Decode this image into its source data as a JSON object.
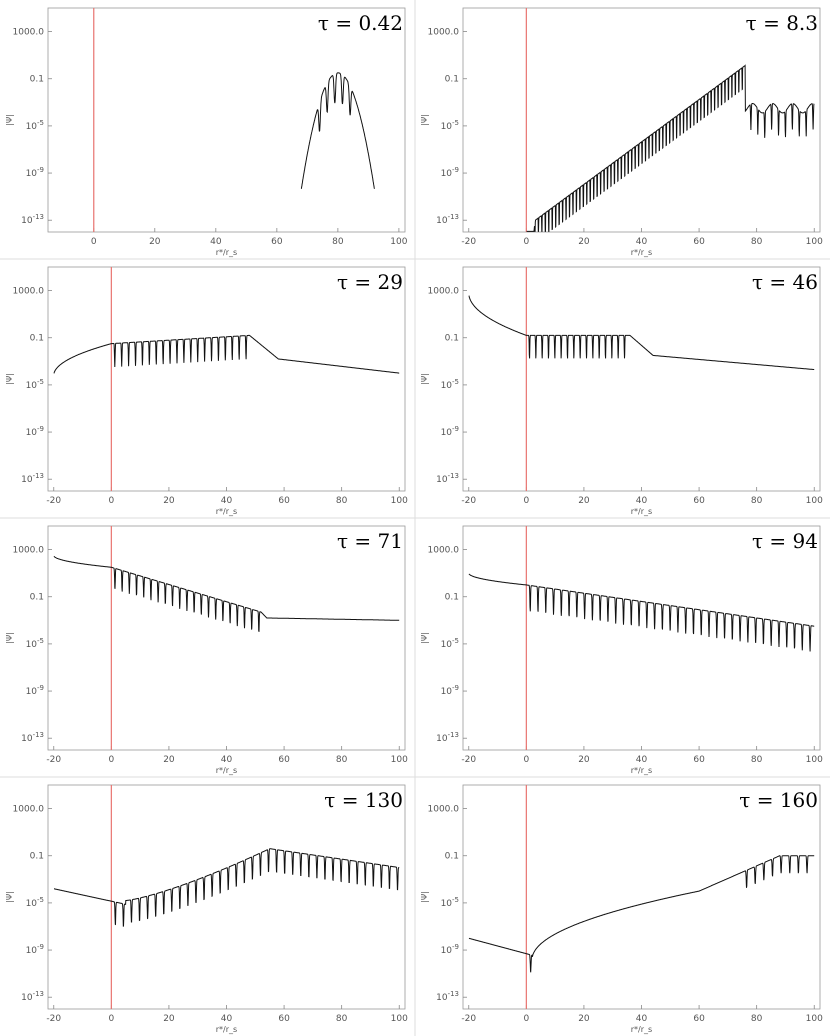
{
  "chart_data": [
    {
      "type": "line",
      "title": "τ = 0.42",
      "tau_label": "τ = 0.42",
      "xlabel": "r*/r_s",
      "ylabel": "|Ψ|",
      "xlim": [
        -15,
        102
      ],
      "ylim_log10": [
        -14,
        5
      ],
      "x_ticks": [
        "0",
        "20",
        "40",
        "60",
        "80",
        "100"
      ],
      "y_ticks": [
        "1000.0",
        "0.1",
        "10^-5",
        "10^-9",
        "10^-13"
      ],
      "marker_x": 0,
      "profile": "packet",
      "params": {
        "center": 80,
        "width": 4,
        "peak": -0.5,
        "edge": 92,
        "start": 68,
        "dips": [
          74,
          76.5,
          79,
          81.5,
          84
        ]
      }
    },
    {
      "type": "line",
      "title": "τ = 8.3",
      "tau_label": "τ = 8.3",
      "xlabel": "r*/r_s",
      "ylabel": "|Ψ|",
      "xlim": [
        -22,
        102
      ],
      "ylim_log10": [
        -14,
        5
      ],
      "x_ticks": [
        "-20",
        "0",
        "20",
        "40",
        "60",
        "80",
        "100"
      ],
      "y_ticks": [
        "1000.0",
        "0.1",
        "10^-5",
        "10^-9",
        "10^-13"
      ],
      "marker_x": 0,
      "profile": "ramp",
      "params": {
        "front": 0,
        "peak_x": 72,
        "peak": -0.6,
        "slope": 0.18,
        "dip_spacing": 1.2,
        "dip_depth": 2.5,
        "tail": -3.5,
        "tail_start": 76
      }
    },
    {
      "type": "line",
      "title": "τ = 29",
      "tau_label": "τ = 29",
      "xlabel": "r*/r_s",
      "ylabel": "|Ψ|",
      "xlim": [
        -22,
        102
      ],
      "ylim_log10": [
        -14,
        5
      ],
      "x_ticks": [
        "-20",
        "0",
        "20",
        "40",
        "60",
        "80",
        "100"
      ],
      "y_ticks": [
        "1000.0",
        "0.1",
        "10^-5",
        "10^-9",
        "10^-13"
      ],
      "marker_x": 0,
      "profile": "wave",
      "params": {
        "start": -20,
        "left_level": -4.2,
        "mid_level": -1.5,
        "right_level": -0.8,
        "osc_end": 48,
        "tail_start": 58,
        "tail_a": -2.8,
        "tail_b": -4.0,
        "dip_spacing": 2.4,
        "dip_depth": 2.0
      }
    },
    {
      "type": "line",
      "title": "τ = 46",
      "tau_label": "τ = 46",
      "xlabel": "r*/r_s",
      "ylabel": "|Ψ|",
      "xlim": [
        -22,
        102
      ],
      "ylim_log10": [
        -14,
        5
      ],
      "x_ticks": [
        "-20",
        "0",
        "20",
        "40",
        "60",
        "80",
        "100"
      ],
      "y_ticks": [
        "1000.0",
        "0.1",
        "10^-5",
        "10^-9",
        "10^-13"
      ],
      "marker_x": 0,
      "profile": "wave",
      "params": {
        "start": -20,
        "left_level": 2.8,
        "mid_level": -0.8,
        "right_level": -0.8,
        "osc_end": 36,
        "tail_start": 44,
        "tail_a": -2.5,
        "tail_b": -3.7,
        "dip_spacing": 2.2,
        "dip_depth": 2.0
      }
    },
    {
      "type": "line",
      "title": "τ = 71",
      "tau_label": "τ = 71",
      "xlabel": "r*/r_s",
      "ylabel": "|Ψ|",
      "xlim": [
        -22,
        102
      ],
      "ylim_log10": [
        -14,
        5
      ],
      "x_ticks": [
        "-20",
        "0",
        "20",
        "40",
        "60",
        "80",
        "100"
      ],
      "y_ticks": [
        "1000.0",
        "0.1",
        "10^-5",
        "10^-9",
        "10^-13"
      ],
      "marker_x": 0,
      "profile": "wave",
      "params": {
        "start": -20,
        "left_level": 2.5,
        "mid_level": 1.5,
        "right_level": -2.3,
        "osc_end": 52,
        "tail_start": 54,
        "tail_a": -2.8,
        "tail_b": -3.0,
        "dip_spacing": 2.5,
        "dip_depth": 1.8
      }
    },
    {
      "type": "line",
      "title": "τ = 94",
      "tau_label": "τ = 94",
      "xlabel": "r*/r_s",
      "ylabel": "|Ψ|",
      "xlim": [
        -22,
        102
      ],
      "ylim_log10": [
        -14,
        5
      ],
      "x_ticks": [
        "-20",
        "0",
        "20",
        "40",
        "60",
        "80",
        "100"
      ],
      "y_ticks": [
        "1000.0",
        "0.1",
        "10^-5",
        "10^-9",
        "10^-13"
      ],
      "marker_x": 0,
      "profile": "wave",
      "params": {
        "start": -20,
        "left_level": 1.0,
        "mid_level": 0.0,
        "right_level": -3.5,
        "osc_end": 100,
        "tail_start": 101,
        "tail_a": -3.5,
        "tail_b": -3.5,
        "dip_spacing": 2.7,
        "dip_depth": 2.2
      }
    },
    {
      "type": "line",
      "title": "τ = 130",
      "tau_label": "τ = 130",
      "xlabel": "r*/r_s",
      "ylabel": "|Ψ|",
      "xlim": [
        -22,
        102
      ],
      "ylim_log10": [
        -14,
        5
      ],
      "x_ticks": [
        "-20",
        "0",
        "20",
        "40",
        "60",
        "80",
        "100"
      ],
      "y_ticks": [
        "1000.0",
        "0.1",
        "10^-5",
        "10^-9",
        "10^-13"
      ],
      "marker_x": 0,
      "profile": "valley",
      "params": {
        "start": -20,
        "left_level": -3.8,
        "valley_x": 5,
        "valley": -6.0,
        "peak_x": 55,
        "peak": -0.4,
        "right_level": -2.0,
        "dip_spacing": 2.8,
        "dip_depth": 2.0
      }
    },
    {
      "type": "line",
      "title": "τ = 160",
      "tau_label": "τ = 160",
      "xlabel": "r*/r_s",
      "ylabel": "|Ψ|",
      "xlim": [
        -22,
        102
      ],
      "ylim_log10": [
        -14,
        5
      ],
      "x_ticks": [
        "-20",
        "0",
        "20",
        "40",
        "60",
        "80",
        "100"
      ],
      "y_ticks": [
        "1000.0",
        "0.1",
        "10^-5",
        "10^-9",
        "10^-13"
      ],
      "marker_x": 0,
      "profile": "rise",
      "params": {
        "start": -20,
        "left_level": -8.0,
        "min_x": 2,
        "min": -9.8,
        "mid_x": 60,
        "mid": -4.0,
        "peak_x": 88,
        "peak": -1.0,
        "dip_spacing": 3.0,
        "dip_depth": 1.5
      }
    }
  ]
}
